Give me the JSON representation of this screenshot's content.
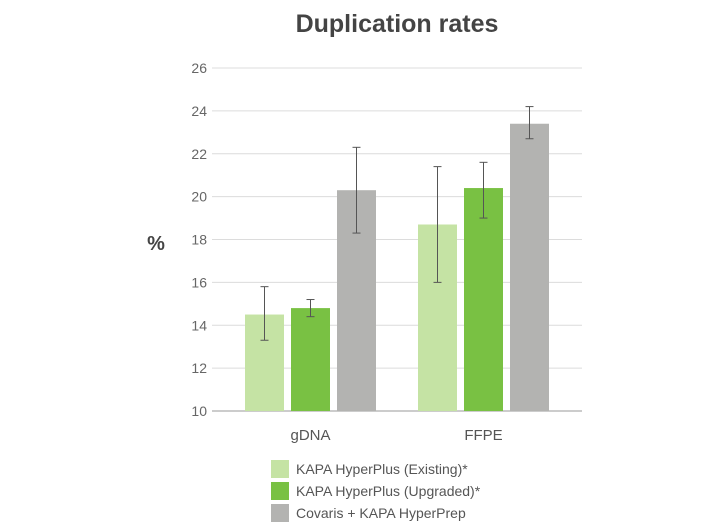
{
  "chart_data": {
    "type": "bar",
    "title": "Duplication rates",
    "ylabel": "%",
    "xlabel": "",
    "ylim": [
      10,
      26
    ],
    "yticks": [
      10,
      12,
      14,
      16,
      18,
      20,
      22,
      24,
      26
    ],
    "grid": true,
    "legend_position": "bottom",
    "categories": [
      "gDNA",
      "FFPE"
    ],
    "series": [
      {
        "name": "KAPA HyperPlus (Existing)*",
        "color": "#c5e3a4",
        "values": [
          14.5,
          18.7
        ],
        "error": [
          [
            13.3,
            15.8
          ],
          [
            16.0,
            21.4
          ]
        ]
      },
      {
        "name": "KAPA HyperPlus (Upgraded)*",
        "color": "#79c143",
        "values": [
          14.8,
          20.4
        ],
        "error": [
          [
            14.4,
            15.2
          ],
          [
            19.0,
            21.6
          ]
        ]
      },
      {
        "name": "Covaris + KAPA HyperPrep",
        "color": "#b3b3b1",
        "values": [
          20.3,
          23.4
        ],
        "error": [
          [
            18.3,
            22.3
          ],
          [
            22.7,
            24.2
          ]
        ]
      }
    ]
  }
}
